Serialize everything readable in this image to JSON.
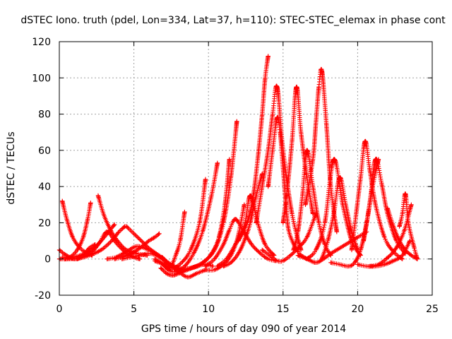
{
  "chart_data": {
    "type": "scatter",
    "title": "dSTEC Iono. truth (pdel, Lon=334, Lat=37, h=110): STEC-STEC_elemax in phase cont",
    "xlabel": "GPS time / hours of day 090 of year 2014",
    "ylabel": "dSTEC  / TECUs",
    "xlim": [
      0,
      25
    ],
    "ylim": [
      -20,
      120
    ],
    "xticks": [
      0,
      5,
      10,
      15,
      20,
      25
    ],
    "yticks": [
      -20,
      0,
      20,
      40,
      60,
      80,
      100,
      120
    ],
    "grid": true,
    "legend": "none",
    "marker": "plus",
    "color": "#ff0000",
    "series": [
      {
        "x": [
          0.0,
          0.3,
          0.7,
          1.1,
          1.6,
          2.0,
          2.4
        ],
        "y": [
          5,
          3,
          1,
          0,
          2,
          6,
          8
        ]
      },
      {
        "x": [
          0.2,
          0.5,
          0.9,
          1.4,
          1.9,
          2.2
        ],
        "y": [
          32,
          22,
          12,
          6,
          3,
          2
        ]
      },
      {
        "x": [
          0.2,
          0.7,
          1.2,
          1.6,
          1.9,
          2.1
        ],
        "y": [
          1,
          1,
          5,
          12,
          22,
          31
        ]
      },
      {
        "x": [
          0.0,
          0.8,
          1.6,
          2.2,
          2.7,
          3.2,
          3.8,
          4.4,
          5.0,
          5.4
        ],
        "y": [
          0,
          0,
          1,
          4,
          9,
          15,
          9,
          4,
          1,
          0
        ]
      },
      {
        "x": [
          2.6,
          3.0,
          3.5,
          4.0,
          4.5,
          5.2,
          5.9
        ],
        "y": [
          35,
          24,
          15,
          9,
          5,
          3,
          2
        ]
      },
      {
        "x": [
          0.4,
          1.0,
          1.7,
          2.3,
          2.8,
          3.3,
          3.7
        ],
        "y": [
          0,
          1,
          3,
          6,
          10,
          15,
          19
        ]
      },
      {
        "x": [
          1.2,
          2.0,
          2.8,
          3.5,
          4.0,
          4.4
        ],
        "y": [
          0,
          2,
          5,
          10,
          15,
          18
        ]
      },
      {
        "x": [
          3.7,
          4.2,
          4.8,
          5.4,
          6.0,
          6.4,
          6.7
        ],
        "y": [
          0,
          1,
          3,
          6,
          10,
          12,
          14
        ]
      },
      {
        "x": [
          3.2,
          3.8,
          4.5,
          5.2,
          6.0,
          6.6,
          7.0
        ],
        "y": [
          0,
          1,
          4,
          7,
          5,
          2,
          0
        ]
      },
      {
        "x": [
          4.5,
          5.0,
          5.5,
          6.0,
          6.5,
          7.0,
          7.5,
          8.0,
          8.6,
          9.2,
          9.8
        ],
        "y": [
          18,
          14,
          10,
          6,
          3,
          0,
          -4,
          -7,
          -10,
          -8,
          -6
        ]
      },
      {
        "x": [
          4.2,
          4.8,
          5.4,
          6.0,
          6.5,
          6.9,
          7.3
        ],
        "y": [
          0,
          1,
          2,
          3,
          2,
          0,
          -3
        ]
      },
      {
        "x": [
          6.4,
          6.8,
          7.2,
          7.5,
          7.8,
          8.1,
          8.4
        ],
        "y": [
          0,
          -2,
          -5,
          -4,
          2,
          10,
          26
        ]
      },
      {
        "x": [
          6.8,
          7.2,
          7.6,
          8.0,
          8.6,
          9.2,
          9.8,
          10.3
        ],
        "y": [
          -5,
          -8,
          -9,
          -8,
          -6,
          -4,
          -3,
          -4
        ]
      },
      {
        "x": [
          6.4,
          7.0,
          7.6,
          8.2,
          8.8,
          9.4,
          9.8
        ],
        "y": [
          -1,
          -3,
          -5,
          -2,
          5,
          20,
          44
        ]
      },
      {
        "x": [
          7.0,
          7.3,
          7.8,
          8.4,
          9.0,
          9.6,
          10.2,
          10.6
        ],
        "y": [
          -3,
          -6,
          -7,
          -4,
          3,
          15,
          35,
          53
        ]
      },
      {
        "x": [
          7.2,
          8.0,
          8.8,
          9.6,
          10.4,
          11.0,
          11.5,
          11.9
        ],
        "y": [
          -2,
          -6,
          -5,
          -2,
          5,
          20,
          45,
          76
        ]
      },
      {
        "x": [
          6.9,
          7.3,
          8.0,
          8.8,
          9.5,
          10.2,
          10.7,
          11.1,
          11.4
        ],
        "y": [
          1,
          -2,
          -5,
          -5,
          -3,
          3,
          12,
          30,
          55
        ]
      },
      {
        "x": [
          9.8,
          10.4,
          11.0,
          11.5,
          11.9,
          12.1,
          12.4
        ],
        "y": [
          -6,
          -6,
          -3,
          2,
          10,
          17,
          30
        ]
      },
      {
        "x": [
          11.0,
          11.5,
          12.0,
          12.4,
          12.8,
          13.2,
          13.6
        ],
        "y": [
          -4,
          -2,
          3,
          10,
          20,
          35,
          47
        ]
      },
      {
        "x": [
          9.8,
          10.4,
          11.0,
          11.4,
          11.8,
          12.3,
          12.9,
          13.5,
          14.0,
          14.5
        ],
        "y": [
          -4,
          0,
          8,
          16,
          22,
          16,
          8,
          3,
          0,
          -1
        ]
      },
      {
        "x": [
          10.6,
          11.2,
          11.8,
          12.4,
          12.8,
          13.3,
          13.8,
          14.4
        ],
        "y": [
          -4,
          0,
          8,
          18,
          35,
          20,
          8,
          2
        ]
      },
      {
        "x": [
          12.0,
          12.6,
          13.0,
          13.3,
          13.6,
          13.8,
          14.0
        ],
        "y": [
          10,
          20,
          35,
          55,
          80,
          100,
          112
        ]
      },
      {
        "x": [
          13.2,
          13.6,
          14.0,
          14.3,
          14.6,
          15.0,
          15.6,
          16.2
        ],
        "y": [
          20,
          40,
          60,
          80,
          95,
          60,
          25,
          5
        ]
      },
      {
        "x": [
          14.0,
          14.3,
          14.6,
          14.8,
          15.0,
          15.2,
          15.4,
          16.0,
          16.6
        ],
        "y": [
          40,
          60,
          78,
          70,
          50,
          30,
          15,
          4,
          0
        ]
      },
      {
        "x": [
          13.6,
          14.1,
          14.6,
          15.0,
          15.5,
          16.0,
          16.6,
          17.2
        ],
        "y": [
          5,
          2,
          -1,
          -1,
          2,
          6,
          12,
          25
        ]
      },
      {
        "x": [
          15.0,
          15.3,
          15.6,
          15.9,
          16.2,
          16.6,
          17.0
        ],
        "y": [
          20,
          40,
          65,
          95,
          70,
          45,
          25
        ]
      },
      {
        "x": [
          15.7,
          16.0,
          16.3,
          16.6,
          17.0,
          17.4,
          17.8,
          18.2
        ],
        "y": [
          5,
          15,
          35,
          60,
          40,
          20,
          8,
          2
        ]
      },
      {
        "x": [
          16.5,
          17.0,
          17.2,
          17.4,
          17.6,
          17.9,
          18.2,
          18.6
        ],
        "y": [
          30,
          55,
          75,
          95,
          104,
          75,
          40,
          15
        ]
      },
      {
        "x": [
          16.6,
          17.2,
          17.8,
          18.4,
          19.0,
          19.6,
          20.2
        ],
        "y": [
          0,
          5,
          20,
          55,
          30,
          10,
          2
        ]
      },
      {
        "x": [
          16.0,
          16.6,
          17.2,
          17.7,
          18.2,
          18.8,
          19.4,
          20.0,
          20.6
        ],
        "y": [
          2,
          0,
          -2,
          0,
          3,
          6,
          9,
          12,
          15
        ]
      },
      {
        "x": [
          17.6,
          18.0,
          18.4,
          18.8,
          19.2,
          19.6,
          20.0
        ],
        "y": [
          0,
          10,
          25,
          45,
          30,
          15,
          5
        ]
      },
      {
        "x": [
          18.2,
          18.8,
          19.4,
          19.8,
          20.2,
          20.6,
          21.0,
          21.4
        ],
        "y": [
          -2,
          -3,
          -4,
          -2,
          5,
          20,
          40,
          55
        ]
      },
      {
        "x": [
          19.6,
          19.9,
          20.2,
          20.5,
          20.8,
          21.2,
          21.8,
          22.4,
          23.0
        ],
        "y": [
          5,
          25,
          45,
          65,
          50,
          30,
          12,
          4,
          0
        ]
      },
      {
        "x": [
          20.0,
          20.6,
          21.2,
          21.8,
          22.4,
          23.0,
          23.5
        ],
        "y": [
          -3,
          -4,
          -4,
          -3,
          -1,
          2,
          10
        ]
      },
      {
        "x": [
          20.4,
          20.8,
          21.2,
          21.6,
          22.0,
          22.6,
          23.2
        ],
        "y": [
          10,
          30,
          55,
          42,
          25,
          10,
          3
        ]
      },
      {
        "x": [
          20.8,
          21.4,
          21.9,
          22.5,
          23.1,
          23.6
        ],
        "y": [
          -4,
          -3,
          0,
          5,
          15,
          30
        ]
      },
      {
        "x": [
          22.0,
          22.4,
          22.8,
          23.2,
          23.6,
          24.0
        ],
        "y": [
          28,
          18,
          10,
          5,
          2,
          0
        ]
      },
      {
        "x": [
          22.8,
          23.0,
          23.2,
          23.4,
          23.8,
          24.0
        ],
        "y": [
          18,
          25,
          36,
          20,
          6,
          0
        ]
      }
    ]
  }
}
